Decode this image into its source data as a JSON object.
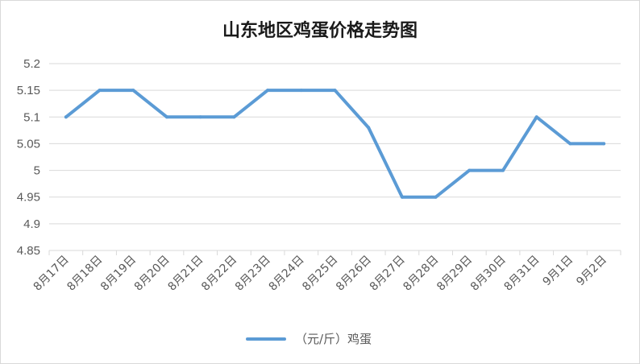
{
  "chart_data": {
    "type": "line",
    "title": "山东地区鸡蛋价格走势图",
    "xlabel": "",
    "ylabel": "",
    "categories": [
      "8月17日",
      "8月18日",
      "8月19日",
      "8月20日",
      "8月21日",
      "8月22日",
      "8月23日",
      "8月24日",
      "8月25日",
      "8月26日",
      "8月27日",
      "8月28日",
      "8月29日",
      "8月30日",
      "8月31日",
      "9月1日",
      "9月2日"
    ],
    "series": [
      {
        "name": "（元/斤）鸡蛋",
        "values": [
          5.1,
          5.15,
          5.15,
          5.1,
          5.1,
          5.1,
          5.15,
          5.15,
          5.15,
          5.08,
          4.95,
          4.95,
          5.0,
          5.0,
          5.1,
          5.05,
          5.05
        ],
        "color": "#5b9bd5"
      }
    ],
    "ylim": [
      4.85,
      5.2
    ],
    "yticks": [
      "4.85",
      "4.9",
      "4.95",
      "5",
      "5.05",
      "5.1",
      "5.15",
      "5.2"
    ],
    "grid": true,
    "legend_position": "bottom",
    "colors": {
      "grid": "#d9d9d9",
      "axis_text": "#595959"
    }
  }
}
